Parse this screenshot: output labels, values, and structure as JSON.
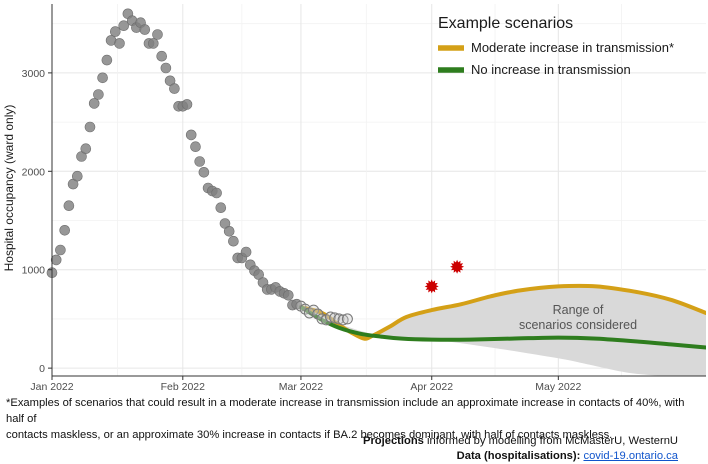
{
  "chart_data": {
    "type": "scatter+line",
    "ylabel": "Hospital occupancy (ward only)",
    "xlabel": "",
    "x_ticks": [
      {
        "date": "2022-01-01",
        "label": "Jan 2022"
      },
      {
        "date": "2022-02-01",
        "label": "Feb 2022"
      },
      {
        "date": "2022-03-01",
        "label": "Mar 2022"
      },
      {
        "date": "2022-04-01",
        "label": "Apr 2022"
      },
      {
        "date": "2022-05-01",
        "label": "May 2022"
      }
    ],
    "xlim": [
      "2022-01-01",
      "2022-06-05"
    ],
    "y_ticks": [
      0,
      1000,
      2000,
      3000
    ],
    "ylim": [
      -80,
      3700
    ],
    "grid": true,
    "legend": {
      "title": "Example scenarios",
      "position": "top-right",
      "entries": [
        {
          "label": "Moderate increase in transmission*",
          "color": "#d4a017"
        },
        {
          "label": "No increase in transmission",
          "color": "#2e7d1e"
        }
      ]
    },
    "observed": {
      "color": "#8c8c8c",
      "points": [
        [
          "2022-01-01",
          970
        ],
        [
          "2022-01-02",
          1100
        ],
        [
          "2022-01-03",
          1200
        ],
        [
          "2022-01-04",
          1400
        ],
        [
          "2022-01-05",
          1650
        ],
        [
          "2022-01-06",
          1870
        ],
        [
          "2022-01-07",
          1950
        ],
        [
          "2022-01-08",
          2150
        ],
        [
          "2022-01-09",
          2230
        ],
        [
          "2022-01-10",
          2450
        ],
        [
          "2022-01-11",
          2690
        ],
        [
          "2022-01-12",
          2780
        ],
        [
          "2022-01-13",
          2950
        ],
        [
          "2022-01-14",
          3130
        ],
        [
          "2022-01-15",
          3330
        ],
        [
          "2022-01-16",
          3420
        ],
        [
          "2022-01-17",
          3300
        ],
        [
          "2022-01-18",
          3480
        ],
        [
          "2022-01-19",
          3600
        ],
        [
          "2022-01-20",
          3530
        ],
        [
          "2022-01-21",
          3460
        ],
        [
          "2022-01-22",
          3510
        ],
        [
          "2022-01-23",
          3440
        ],
        [
          "2022-01-24",
          3300
        ],
        [
          "2022-01-25",
          3300
        ],
        [
          "2022-01-26",
          3390
        ],
        [
          "2022-01-27",
          3170
        ],
        [
          "2022-01-28",
          3050
        ],
        [
          "2022-01-29",
          2920
        ],
        [
          "2022-01-30",
          2840
        ],
        [
          "2022-01-31",
          2660
        ],
        [
          "2022-02-01",
          2660
        ],
        [
          "2022-02-02",
          2680
        ],
        [
          "2022-02-03",
          2370
        ],
        [
          "2022-02-04",
          2250
        ],
        [
          "2022-02-05",
          2100
        ],
        [
          "2022-02-06",
          1990
        ],
        [
          "2022-02-07",
          1830
        ],
        [
          "2022-02-08",
          1800
        ],
        [
          "2022-02-09",
          1780
        ],
        [
          "2022-02-10",
          1630
        ],
        [
          "2022-02-11",
          1470
        ],
        [
          "2022-02-12",
          1390
        ],
        [
          "2022-02-13",
          1290
        ],
        [
          "2022-02-14",
          1120
        ],
        [
          "2022-02-15",
          1120
        ],
        [
          "2022-02-16",
          1180
        ],
        [
          "2022-02-17",
          1050
        ],
        [
          "2022-02-18",
          990
        ],
        [
          "2022-02-19",
          950
        ],
        [
          "2022-02-20",
          870
        ],
        [
          "2022-02-21",
          800
        ],
        [
          "2022-02-22",
          800
        ],
        [
          "2022-02-23",
          820
        ],
        [
          "2022-02-24",
          780
        ],
        [
          "2022-02-25",
          760
        ],
        [
          "2022-02-26",
          740
        ],
        [
          "2022-02-27",
          640
        ],
        [
          "2022-02-28",
          650
        ],
        [
          "2022-03-01",
          630
        ],
        [
          "2022-03-02",
          600
        ],
        [
          "2022-03-03",
          560
        ],
        [
          "2022-03-04",
          590
        ],
        [
          "2022-03-05",
          550
        ],
        [
          "2022-03-06",
          500
        ],
        [
          "2022-03-07",
          490
        ],
        [
          "2022-03-08",
          520
        ],
        [
          "2022-03-09",
          510
        ],
        [
          "2022-03-10",
          500
        ],
        [
          "2022-03-11",
          490
        ],
        [
          "2022-03-12",
          500
        ]
      ]
    },
    "highlighted_points": {
      "color": "#cc0000",
      "points": [
        [
          "2022-04-01",
          830
        ],
        [
          "2022-04-07",
          1030
        ]
      ]
    },
    "range_band": {
      "label_line1": "Range of",
      "label_line2": "scenarios considered",
      "color": "#d9d9d9",
      "upper": [
        [
          "2022-03-01",
          620
        ],
        [
          "2022-03-06",
          560
        ],
        [
          "2022-03-10",
          440
        ],
        [
          "2022-03-13",
          360
        ],
        [
          "2022-03-16",
          300
        ],
        [
          "2022-03-18",
          330
        ],
        [
          "2022-03-22",
          420
        ],
        [
          "2022-03-26",
          520
        ],
        [
          "2022-04-01",
          590
        ],
        [
          "2022-04-08",
          650
        ],
        [
          "2022-04-15",
          730
        ],
        [
          "2022-04-22",
          790
        ],
        [
          "2022-05-01",
          830
        ],
        [
          "2022-05-10",
          830
        ],
        [
          "2022-05-20",
          770
        ],
        [
          "2022-05-28",
          690
        ],
        [
          "2022-06-05",
          560
        ]
      ],
      "lower": [
        [
          "2022-03-01",
          620
        ],
        [
          "2022-03-06",
          520
        ],
        [
          "2022-03-12",
          420
        ],
        [
          "2022-03-20",
          330
        ],
        [
          "2022-04-01",
          290
        ],
        [
          "2022-04-15",
          210
        ],
        [
          "2022-05-01",
          100
        ],
        [
          "2022-05-10",
          20
        ],
        [
          "2022-05-20",
          -60
        ],
        [
          "2022-06-05",
          -100
        ]
      ]
    },
    "series": [
      {
        "name": "Moderate increase in transmission*",
        "color": "#d4a017",
        "points": [
          [
            "2022-03-01",
            620
          ],
          [
            "2022-03-06",
            560
          ],
          [
            "2022-03-10",
            440
          ],
          [
            "2022-03-13",
            360
          ],
          [
            "2022-03-16",
            300
          ],
          [
            "2022-03-18",
            330
          ],
          [
            "2022-03-22",
            420
          ],
          [
            "2022-03-26",
            520
          ],
          [
            "2022-04-01",
            590
          ],
          [
            "2022-04-08",
            650
          ],
          [
            "2022-04-15",
            730
          ],
          [
            "2022-04-22",
            790
          ],
          [
            "2022-05-01",
            830
          ],
          [
            "2022-05-10",
            830
          ],
          [
            "2022-05-20",
            770
          ],
          [
            "2022-05-28",
            690
          ],
          [
            "2022-06-05",
            560
          ]
        ]
      },
      {
        "name": "No increase in transmission",
        "color": "#2e7d1e",
        "points": [
          [
            "2022-03-01",
            620
          ],
          [
            "2022-03-06",
            490
          ],
          [
            "2022-03-10",
            410
          ],
          [
            "2022-03-15",
            350
          ],
          [
            "2022-03-20",
            320
          ],
          [
            "2022-03-25",
            300
          ],
          [
            "2022-04-01",
            290
          ],
          [
            "2022-04-10",
            290
          ],
          [
            "2022-04-20",
            300
          ],
          [
            "2022-05-01",
            310
          ],
          [
            "2022-05-10",
            300
          ],
          [
            "2022-05-20",
            270
          ],
          [
            "2022-05-28",
            240
          ],
          [
            "2022-06-05",
            210
          ]
        ]
      }
    ]
  },
  "footnote": {
    "line1": "*Examples of scenarios that could result in a moderate increase in transmission include an approximate increase in contacts of 40%, with half of",
    "line2": "contacts maskless, or an approximate 30% increase in contacts if BA.2 becomes dominant, with half of contacts maskless."
  },
  "credits": {
    "projections_bold": "Projections",
    "projections_rest": " informed by modelling from McMasterU, WesternU",
    "data_bold": "Data (hospitalisations):",
    "data_link": "covid-19.ontario.ca"
  }
}
